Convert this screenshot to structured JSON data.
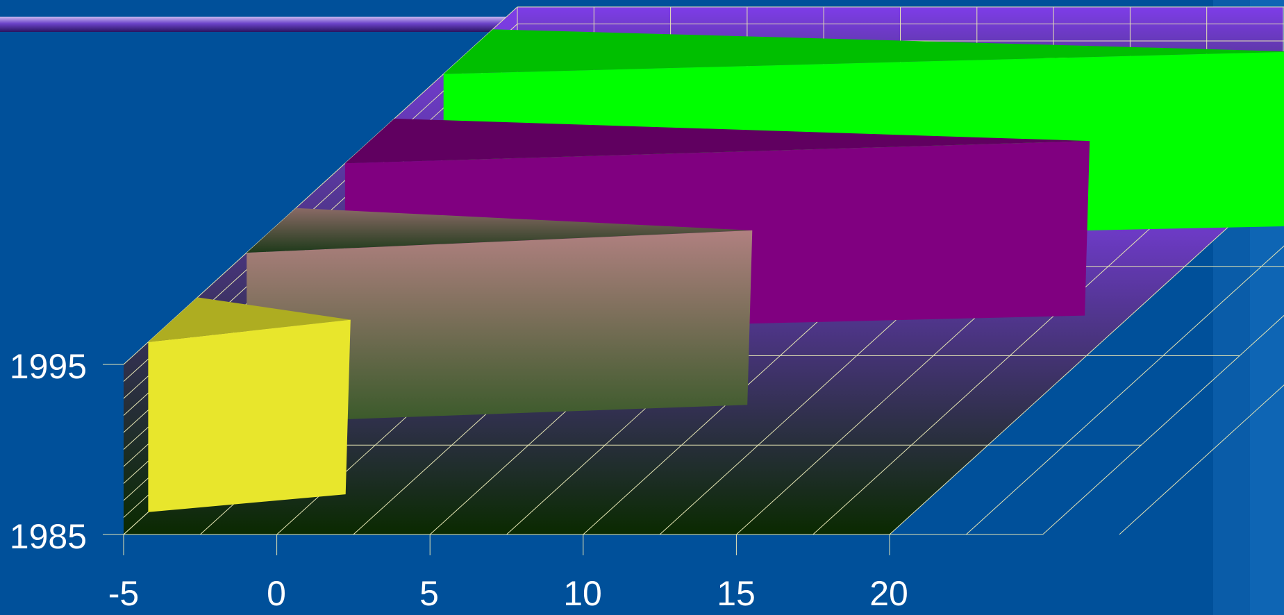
{
  "chart_data": {
    "type": "bar",
    "orientation": "horizontal",
    "projection": "3d",
    "title": "",
    "xlabel": "",
    "ylabel": "",
    "x_ticks": [
      "-5",
      "0",
      "5",
      "10",
      "15",
      "20"
    ],
    "y_ticks": [
      "1985",
      "1995"
    ],
    "xlim": [
      -5,
      20
    ],
    "grid": true,
    "legend": "none",
    "series": [
      {
        "category_index": 0,
        "value": 0.8,
        "shape": "pyramid",
        "color": "#e8e62c"
      },
      {
        "category_index": 1,
        "value": 10.7,
        "shape": "pyramid",
        "color": "#b08080"
      },
      {
        "category_index": 2,
        "value": 18.5,
        "shape": "pyramid",
        "color": "#800080"
      },
      {
        "category_index": 3,
        "value": 22.0,
        "shape": "pyramid",
        "color": "#00ff00"
      }
    ],
    "colors": {
      "background": "#00509a",
      "wall_top": "#7e3de8",
      "wall_bottom": "#0a2a00",
      "grid": "#e6e6b4"
    }
  }
}
